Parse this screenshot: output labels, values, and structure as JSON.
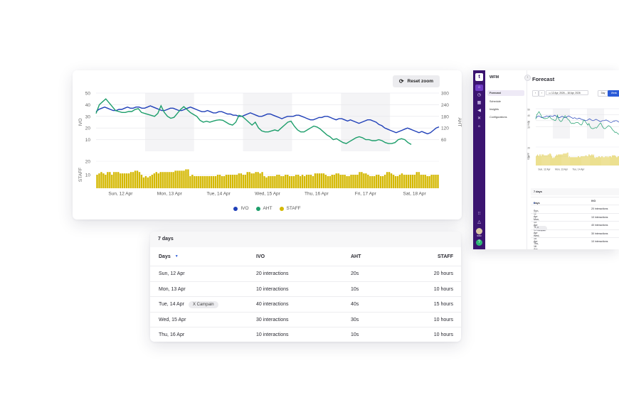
{
  "chart_card": {
    "reset_zoom_label": "Reset zoom",
    "reset_icon": "reset-icon"
  },
  "colors": {
    "ivo": "#1f3fb8",
    "aht": "#1d9e6b",
    "staff": "#d4b800",
    "accent": "#2a5bd7",
    "sidebar": "#3b1470"
  },
  "chart_data": {
    "type": "line",
    "x_tick_labels": [
      "Sun, 12 Apr",
      "Mon, 13 Apr",
      "Tue, 14 Apr",
      "Wed, 15 Apr",
      "Thu, 16 Apr",
      "Fri, 17 Apr",
      "Sat, 18 Apr"
    ],
    "ylabel_left": "IVO",
    "ylabel_right": "AHT",
    "ylabel_staff": "STAFF",
    "y_left_ticks": [
      "50",
      "40",
      "30",
      "20",
      "10"
    ],
    "y_left_range": [
      0,
      50
    ],
    "y_right_ticks": [
      "300",
      "240",
      "180",
      "120",
      "60"
    ],
    "y_right_range": [
      0,
      300
    ],
    "staff_ticks": [
      "20",
      "10"
    ],
    "staff_range": [
      0,
      20
    ],
    "series": [
      {
        "name": "IVO",
        "color_key": "ivo",
        "values": [
          34,
          36,
          37,
          38,
          37,
          36,
          35,
          35,
          36,
          36,
          37,
          38,
          37,
          37,
          38,
          38,
          37,
          37,
          38,
          39,
          38,
          37,
          36,
          35,
          35,
          36,
          37,
          37,
          36,
          35,
          35,
          36,
          37,
          38,
          37,
          36,
          35,
          34,
          34,
          35,
          34,
          33,
          33,
          34,
          34,
          33,
          32,
          32,
          31,
          31,
          30,
          30,
          31,
          32,
          33,
          32,
          31,
          30,
          30,
          31,
          32,
          32,
          31,
          30,
          29,
          28,
          29,
          30,
          30,
          30,
          31,
          31,
          30,
          29,
          28,
          27,
          27,
          28,
          29,
          29,
          30,
          30,
          29,
          28,
          27,
          28,
          28,
          27,
          26,
          27,
          26,
          25,
          24,
          25,
          26,
          27,
          27,
          26,
          25,
          23,
          22,
          20,
          19,
          18,
          17,
          16,
          17,
          18,
          19,
          20,
          19,
          18,
          17,
          16,
          17,
          16,
          15,
          16,
          18,
          20,
          21
        ]
      },
      {
        "name": "AHT",
        "color_key": "aht",
        "values": [
          195,
          240,
          255,
          270,
          250,
          230,
          210,
          205,
          200,
          200,
          205,
          205,
          215,
          220,
          200,
          195,
          190,
          185,
          180,
          195,
          235,
          200,
          180,
          170,
          175,
          195,
          215,
          230,
          215,
          200,
          190,
          180,
          160,
          150,
          155,
          150,
          155,
          160,
          162,
          160,
          150,
          140,
          135,
          150,
          185,
          180,
          165,
          150,
          135,
          150,
          120,
          105,
          100,
          100,
          105,
          110,
          105,
          120,
          135,
          150,
          155,
          130,
          110,
          100,
          100,
          110,
          120,
          130,
          125,
          115,
          100,
          85,
          75,
          60,
          65,
          55,
          45,
          40,
          50,
          60,
          70,
          75,
          70,
          60,
          60,
          55,
          55,
          60,
          55,
          45,
          40,
          40,
          45,
          60,
          65,
          60,
          45,
          35
        ]
      },
      {
        "name": "STAFF",
        "color_key": "staff",
        "values": [
          10,
          11,
          12,
          11,
          10,
          12,
          12,
          10,
          12,
          12,
          12,
          11,
          11,
          11,
          11,
          11,
          12,
          12,
          13,
          13,
          12,
          10,
          8,
          9,
          8,
          9,
          10,
          11,
          12,
          11,
          12,
          12,
          12,
          12,
          12,
          12,
          12,
          13,
          13,
          13,
          13,
          13,
          14,
          14,
          9,
          10,
          9,
          9,
          9,
          9,
          9,
          9,
          9,
          9,
          9,
          9,
          9,
          10,
          10,
          9,
          9,
          10,
          10,
          10,
          10,
          10,
          10,
          11,
          11,
          10,
          10,
          12,
          12,
          11,
          11,
          12,
          12,
          11,
          12,
          9,
          8,
          9,
          9,
          9,
          9,
          10,
          10,
          9,
          9,
          10,
          10,
          9,
          9,
          9,
          10,
          10,
          9,
          10,
          9,
          10,
          10,
          10,
          9,
          11,
          11,
          11,
          11,
          11,
          10,
          9,
          9,
          10,
          10,
          11,
          11,
          10,
          10,
          10,
          9,
          9,
          10,
          10,
          10,
          10,
          12,
          12,
          11,
          11,
          10,
          9,
          9,
          9,
          10,
          10,
          9,
          9,
          10,
          12,
          12,
          11,
          10,
          9,
          9,
          10,
          11,
          10,
          10,
          10,
          10,
          10,
          10,
          12,
          12,
          10,
          10,
          10,
          9,
          9,
          10,
          10,
          10,
          10
        ]
      }
    ],
    "legend": [
      "IVO",
      "AHT",
      "STAFF"
    ],
    "legend_position": "bottom-center"
  },
  "table": {
    "title": "7 days",
    "columns": [
      "Days",
      "IVO",
      "AHT",
      "STAFF"
    ],
    "rows": [
      {
        "day": "Sun, 12 Apr",
        "ivo": "20 interactions",
        "aht": "20s",
        "staff": "20 hours",
        "tag": ""
      },
      {
        "day": "Mon, 13 Apr",
        "ivo": "10 interactions",
        "aht": "10s",
        "staff": "10 hours",
        "tag": ""
      },
      {
        "day": "Tue, 14 Apr",
        "ivo": "40 interactions",
        "aht": "40s",
        "staff": "15 hours",
        "tag": "X Campain"
      },
      {
        "day": "Wed, 15 Apr",
        "ivo": "30 interactions",
        "aht": "30s",
        "staff": "10 hours",
        "tag": ""
      },
      {
        "day": "Thu, 16 Apr",
        "ivo": "10 interactions",
        "aht": "10s",
        "staff": "10 hours",
        "tag": ""
      }
    ]
  },
  "app": {
    "logo": "t",
    "module_title": "WFM",
    "nav_items": [
      "Forecast",
      "Schedule",
      "Insights",
      "Configurations"
    ],
    "active_nav": "Forecast",
    "page_title": "Forecast",
    "date_range": "12 Apr, 2026 – 18 Apr, 2026",
    "view_day": "Day",
    "view_week": "Week",
    "mini_x_labels": [
      "Sun, 12 Apr",
      "Mon, 13 Apr",
      "Tue, 14 Apr"
    ],
    "mini_y_ticks": [
      "50",
      "40",
      "30",
      "20"
    ],
    "mini_staff_ticks": [
      "20",
      "10"
    ],
    "mini_ylabel": "IVO",
    "mini_staff_label": "STAFF",
    "mini_table_title": "7 days",
    "mini_columns": [
      "Days",
      "IVO"
    ],
    "mini_rows": [
      {
        "day": "Sun, 12 Apr",
        "ivo": "20 interactions",
        "tag": ""
      },
      {
        "day": "Mon, 13 Apr",
        "ivo": "10 interactions",
        "tag": ""
      },
      {
        "day": "Tue, 14 Apr",
        "ivo": "40 interactions",
        "tag": "X Campain"
      },
      {
        "day": "Wed, 15 Apr",
        "ivo": "30 interactions",
        "tag": ""
      },
      {
        "day": "Thu, 16 Apr",
        "ivo": "10 interactions",
        "tag": ""
      }
    ],
    "sidebar_icons": [
      "home-icon",
      "clock-icon",
      "calendar-icon",
      "megaphone-icon",
      "users-icon",
      "wfm-icon"
    ],
    "sidebar_bottom_icons": [
      "grid-icon",
      "bell-icon",
      "avatar",
      "help-icon"
    ],
    "wfm_badge": "WFM"
  }
}
